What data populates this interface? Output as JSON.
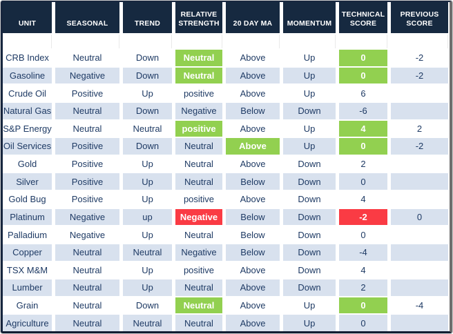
{
  "colors": {
    "header_bg": "#162940",
    "row_base": "#ffffff",
    "row_alt": "#d8e1ee",
    "highlight_green": "#92d050",
    "highlight_red": "#fa3b44",
    "text_navy": "#1e3a64",
    "table_border": "#16253e"
  },
  "table": {
    "columns": [
      {
        "key": "unit",
        "label": "UNIT"
      },
      {
        "key": "seasonal",
        "label": "SEASONAL"
      },
      {
        "key": "trend",
        "label": "TREND"
      },
      {
        "key": "relative_strength",
        "label": "RELATIVE STRENGTH"
      },
      {
        "key": "ma20",
        "label": "20 DAY MA"
      },
      {
        "key": "momentum",
        "label": "MOMENTUM"
      },
      {
        "key": "technical_score",
        "label": "TECHNICAL SCORE"
      },
      {
        "key": "previous_score",
        "label": "PREVIOUS SCORE"
      }
    ],
    "rows": [
      {
        "unit": "CRB Index",
        "seasonal": "Neutral",
        "trend": "Down",
        "relative_strength": "Neutral",
        "ma20": "Above",
        "momentum": "Up",
        "technical_score": "0",
        "previous_score": "-2",
        "highlights": {
          "relative_strength": "green",
          "technical_score": "green"
        }
      },
      {
        "unit": "Gasoline",
        "seasonal": "Negative",
        "trend": "Down",
        "relative_strength": "Neutral",
        "ma20": "Above",
        "momentum": "Up",
        "technical_score": "0",
        "previous_score": "-2",
        "highlights": {
          "relative_strength": "green",
          "technical_score": "green"
        }
      },
      {
        "unit": "Crude Oil",
        "seasonal": "Positive",
        "trend": "Up",
        "relative_strength": "positive",
        "ma20": "Above",
        "momentum": "Up",
        "technical_score": "6",
        "previous_score": "",
        "highlights": {}
      },
      {
        "unit": "Natural Gas",
        "seasonal": "Neutral",
        "trend": "Down",
        "relative_strength": "Negative",
        "ma20": "Below",
        "momentum": "Down",
        "technical_score": "-6",
        "previous_score": "",
        "highlights": {}
      },
      {
        "unit": "S&P Energy",
        "seasonal": "Neutral",
        "trend": "Neutral",
        "relative_strength": "positive",
        "ma20": "Above",
        "momentum": "Up",
        "technical_score": "4",
        "previous_score": "2",
        "highlights": {
          "relative_strength": "green",
          "technical_score": "green"
        }
      },
      {
        "unit": "Oil Services",
        "seasonal": "Positive",
        "trend": "Down",
        "relative_strength": "Neutral",
        "ma20": "Above",
        "momentum": "Up",
        "technical_score": "0",
        "previous_score": "-2",
        "highlights": {
          "ma20": "green",
          "technical_score": "green"
        }
      },
      {
        "unit": "Gold",
        "seasonal": "Positive",
        "trend": "Up",
        "relative_strength": "Neutral",
        "ma20": "Above",
        "momentum": "Down",
        "technical_score": "2",
        "previous_score": "",
        "highlights": {}
      },
      {
        "unit": "Silver",
        "seasonal": "Positive",
        "trend": "Up",
        "relative_strength": "Neutral",
        "ma20": "Below",
        "momentum": "Down",
        "technical_score": "0",
        "previous_score": "",
        "highlights": {}
      },
      {
        "unit": "Gold Bug",
        "seasonal": "Positive",
        "trend": "Up",
        "relative_strength": "positive",
        "ma20": "Above",
        "momentum": "Down",
        "technical_score": "4",
        "previous_score": "",
        "highlights": {}
      },
      {
        "unit": "Platinum",
        "seasonal": "Negative",
        "trend": "up",
        "relative_strength": "Negative",
        "ma20": "Below",
        "momentum": "Down",
        "technical_score": "-2",
        "previous_score": "0",
        "highlights": {
          "relative_strength": "red",
          "technical_score": "red"
        }
      },
      {
        "unit": "Palladium",
        "seasonal": "Negative",
        "trend": "Up",
        "relative_strength": "Neutral",
        "ma20": "Below",
        "momentum": "Down",
        "technical_score": "0",
        "previous_score": "",
        "highlights": {}
      },
      {
        "unit": "Copper",
        "seasonal": "Neutral",
        "trend": "Neutral",
        "relative_strength": "Negative",
        "ma20": "Below",
        "momentum": "Down",
        "technical_score": "-4",
        "previous_score": "",
        "highlights": {}
      },
      {
        "unit": "TSX M&M",
        "seasonal": "Neutral",
        "trend": "Up",
        "relative_strength": "positive",
        "ma20": "Above",
        "momentum": "Down",
        "technical_score": "4",
        "previous_score": "",
        "highlights": {}
      },
      {
        "unit": "Lumber",
        "seasonal": "Neutral",
        "trend": "Up",
        "relative_strength": "Neutral",
        "ma20": "Above",
        "momentum": "Down",
        "technical_score": "2",
        "previous_score": "",
        "highlights": {}
      },
      {
        "unit": "Grain",
        "seasonal": "Neutral",
        "trend": "Down",
        "relative_strength": "Neutral",
        "ma20": "Above",
        "momentum": "Up",
        "technical_score": "0",
        "previous_score": "-4",
        "highlights": {
          "relative_strength": "green",
          "technical_score": "green"
        }
      },
      {
        "unit": "Agriculture",
        "seasonal": "Neutral",
        "trend": "Neutral",
        "relative_strength": "Neutral",
        "ma20": "Above",
        "momentum": "Up",
        "technical_score": "0",
        "previous_score": "",
        "highlights": {}
      }
    ]
  }
}
